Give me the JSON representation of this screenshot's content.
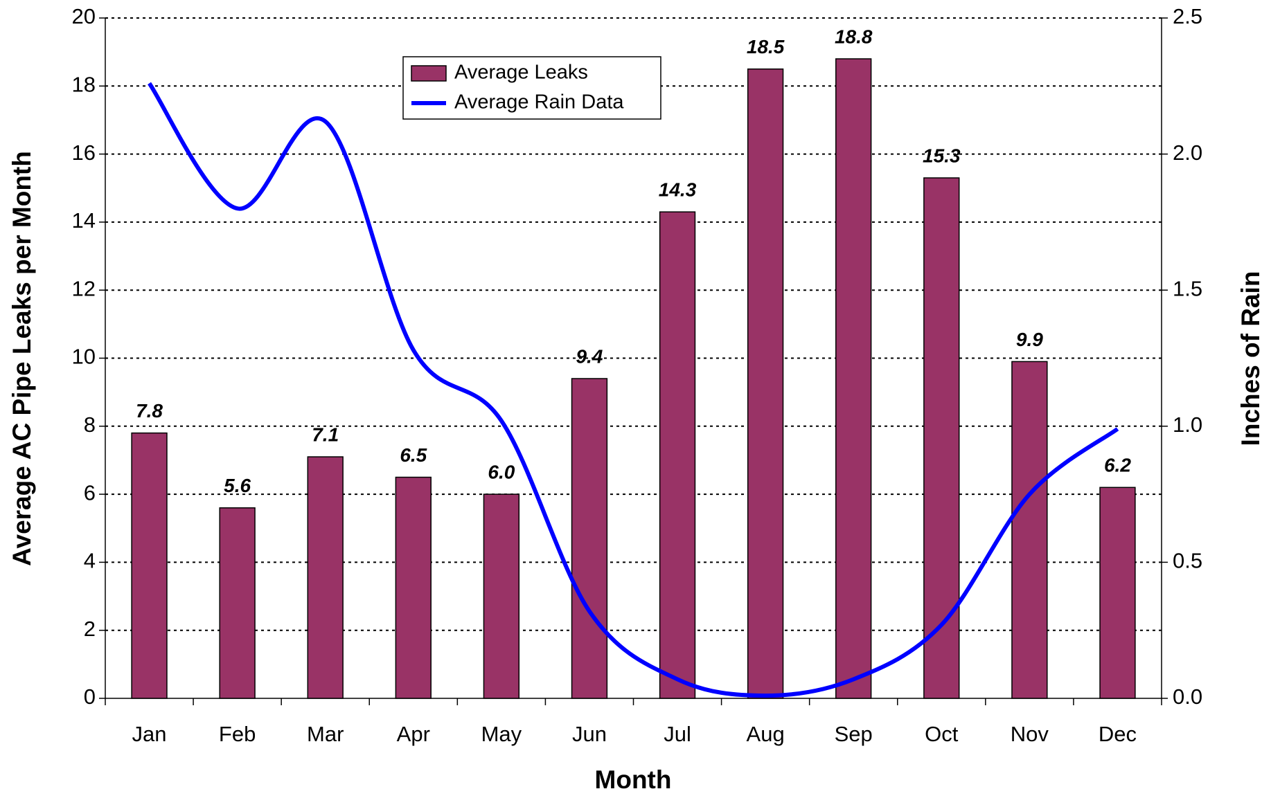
{
  "chart_data": {
    "type": "bar_line",
    "x_label": "Month",
    "y_label": "Average AC Pipe Leaks per Month",
    "y2_label": "Inches of Rain",
    "categories": [
      "Jan",
      "Feb",
      "Mar",
      "Apr",
      "May",
      "Jun",
      "Jul",
      "Aug",
      "Sep",
      "Oct",
      "Nov",
      "Dec"
    ],
    "series": [
      {
        "name": "Average Leaks",
        "type": "bar",
        "color": "#993366",
        "values": [
          7.8,
          5.6,
          7.1,
          6.5,
          6.0,
          9.4,
          14.3,
          18.5,
          18.8,
          15.3,
          9.9,
          6.2
        ],
        "value_labels": [
          "7.8",
          "5.6",
          "7.1",
          "6.5",
          "6.0",
          "9.4",
          "14.3",
          "18.5",
          "18.8",
          "15.3",
          "9.9",
          "6.2"
        ]
      },
      {
        "name": "Average Rain Data",
        "type": "line",
        "color": "#0000ff",
        "axis": "y2",
        "smooth": true,
        "values": [
          2.26,
          1.8,
          2.12,
          1.28,
          1.02,
          0.32,
          0.07,
          0.01,
          0.07,
          0.27,
          0.75,
          0.99
        ]
      }
    ],
    "ylim": [
      0,
      20
    ],
    "yticks": [
      0,
      2,
      4,
      6,
      8,
      10,
      12,
      14,
      16,
      18,
      20
    ],
    "y2lim": [
      0,
      2.5
    ],
    "y2ticks": [
      {
        "value": 0,
        "label": "0.0"
      },
      0.5,
      {
        "value": 1,
        "label": "1.0"
      },
      1.5,
      {
        "value": 2,
        "label": "2.0"
      },
      2.5
    ],
    "grid": true,
    "legend": "top"
  }
}
